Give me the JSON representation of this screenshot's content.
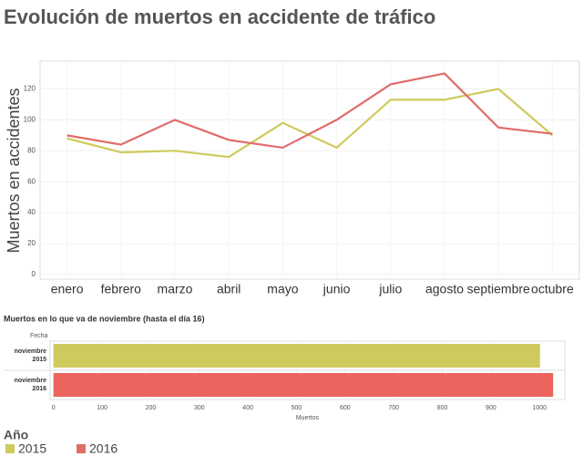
{
  "title": "Evolución de muertos en accidente de tráfico",
  "legend": {
    "title": "Año"
  },
  "chart_data": [
    {
      "type": "line",
      "ylabel": "Muertos en accidentes",
      "categories": [
        "enero",
        "febrero",
        "marzo",
        "abril",
        "mayo",
        "junio",
        "julio",
        "agosto",
        "septiembre",
        "octubre"
      ],
      "series": [
        {
          "name": "2015",
          "color": "#cfca5e",
          "values": [
            88,
            79,
            80,
            76,
            98,
            82,
            113,
            113,
            120,
            90
          ]
        },
        {
          "name": "2016",
          "color": "#e06c6a",
          "values": [
            90,
            84,
            100,
            87,
            82,
            100,
            123,
            130,
            95,
            91
          ]
        }
      ],
      "ylim": [
        -3,
        138
      ],
      "yticks": [
        0,
        20,
        40,
        60,
        80,
        100,
        120
      ],
      "grid": true
    },
    {
      "type": "barh",
      "title": "Muertos en lo que va de noviembre (hasta el día 16)",
      "ylabel": "Fecha",
      "xlabel": "Muertos",
      "categories": [
        "noviembre 2015",
        "noviembre 2016"
      ],
      "values": [
        1001,
        1028
      ],
      "colors": [
        "#cfca5e",
        "#ec645e"
      ],
      "xlim": [
        -7,
        1052
      ],
      "xticks": [
        0,
        100,
        200,
        300,
        400,
        500,
        600,
        700,
        800,
        900,
        1000
      ],
      "grid": true
    }
  ]
}
